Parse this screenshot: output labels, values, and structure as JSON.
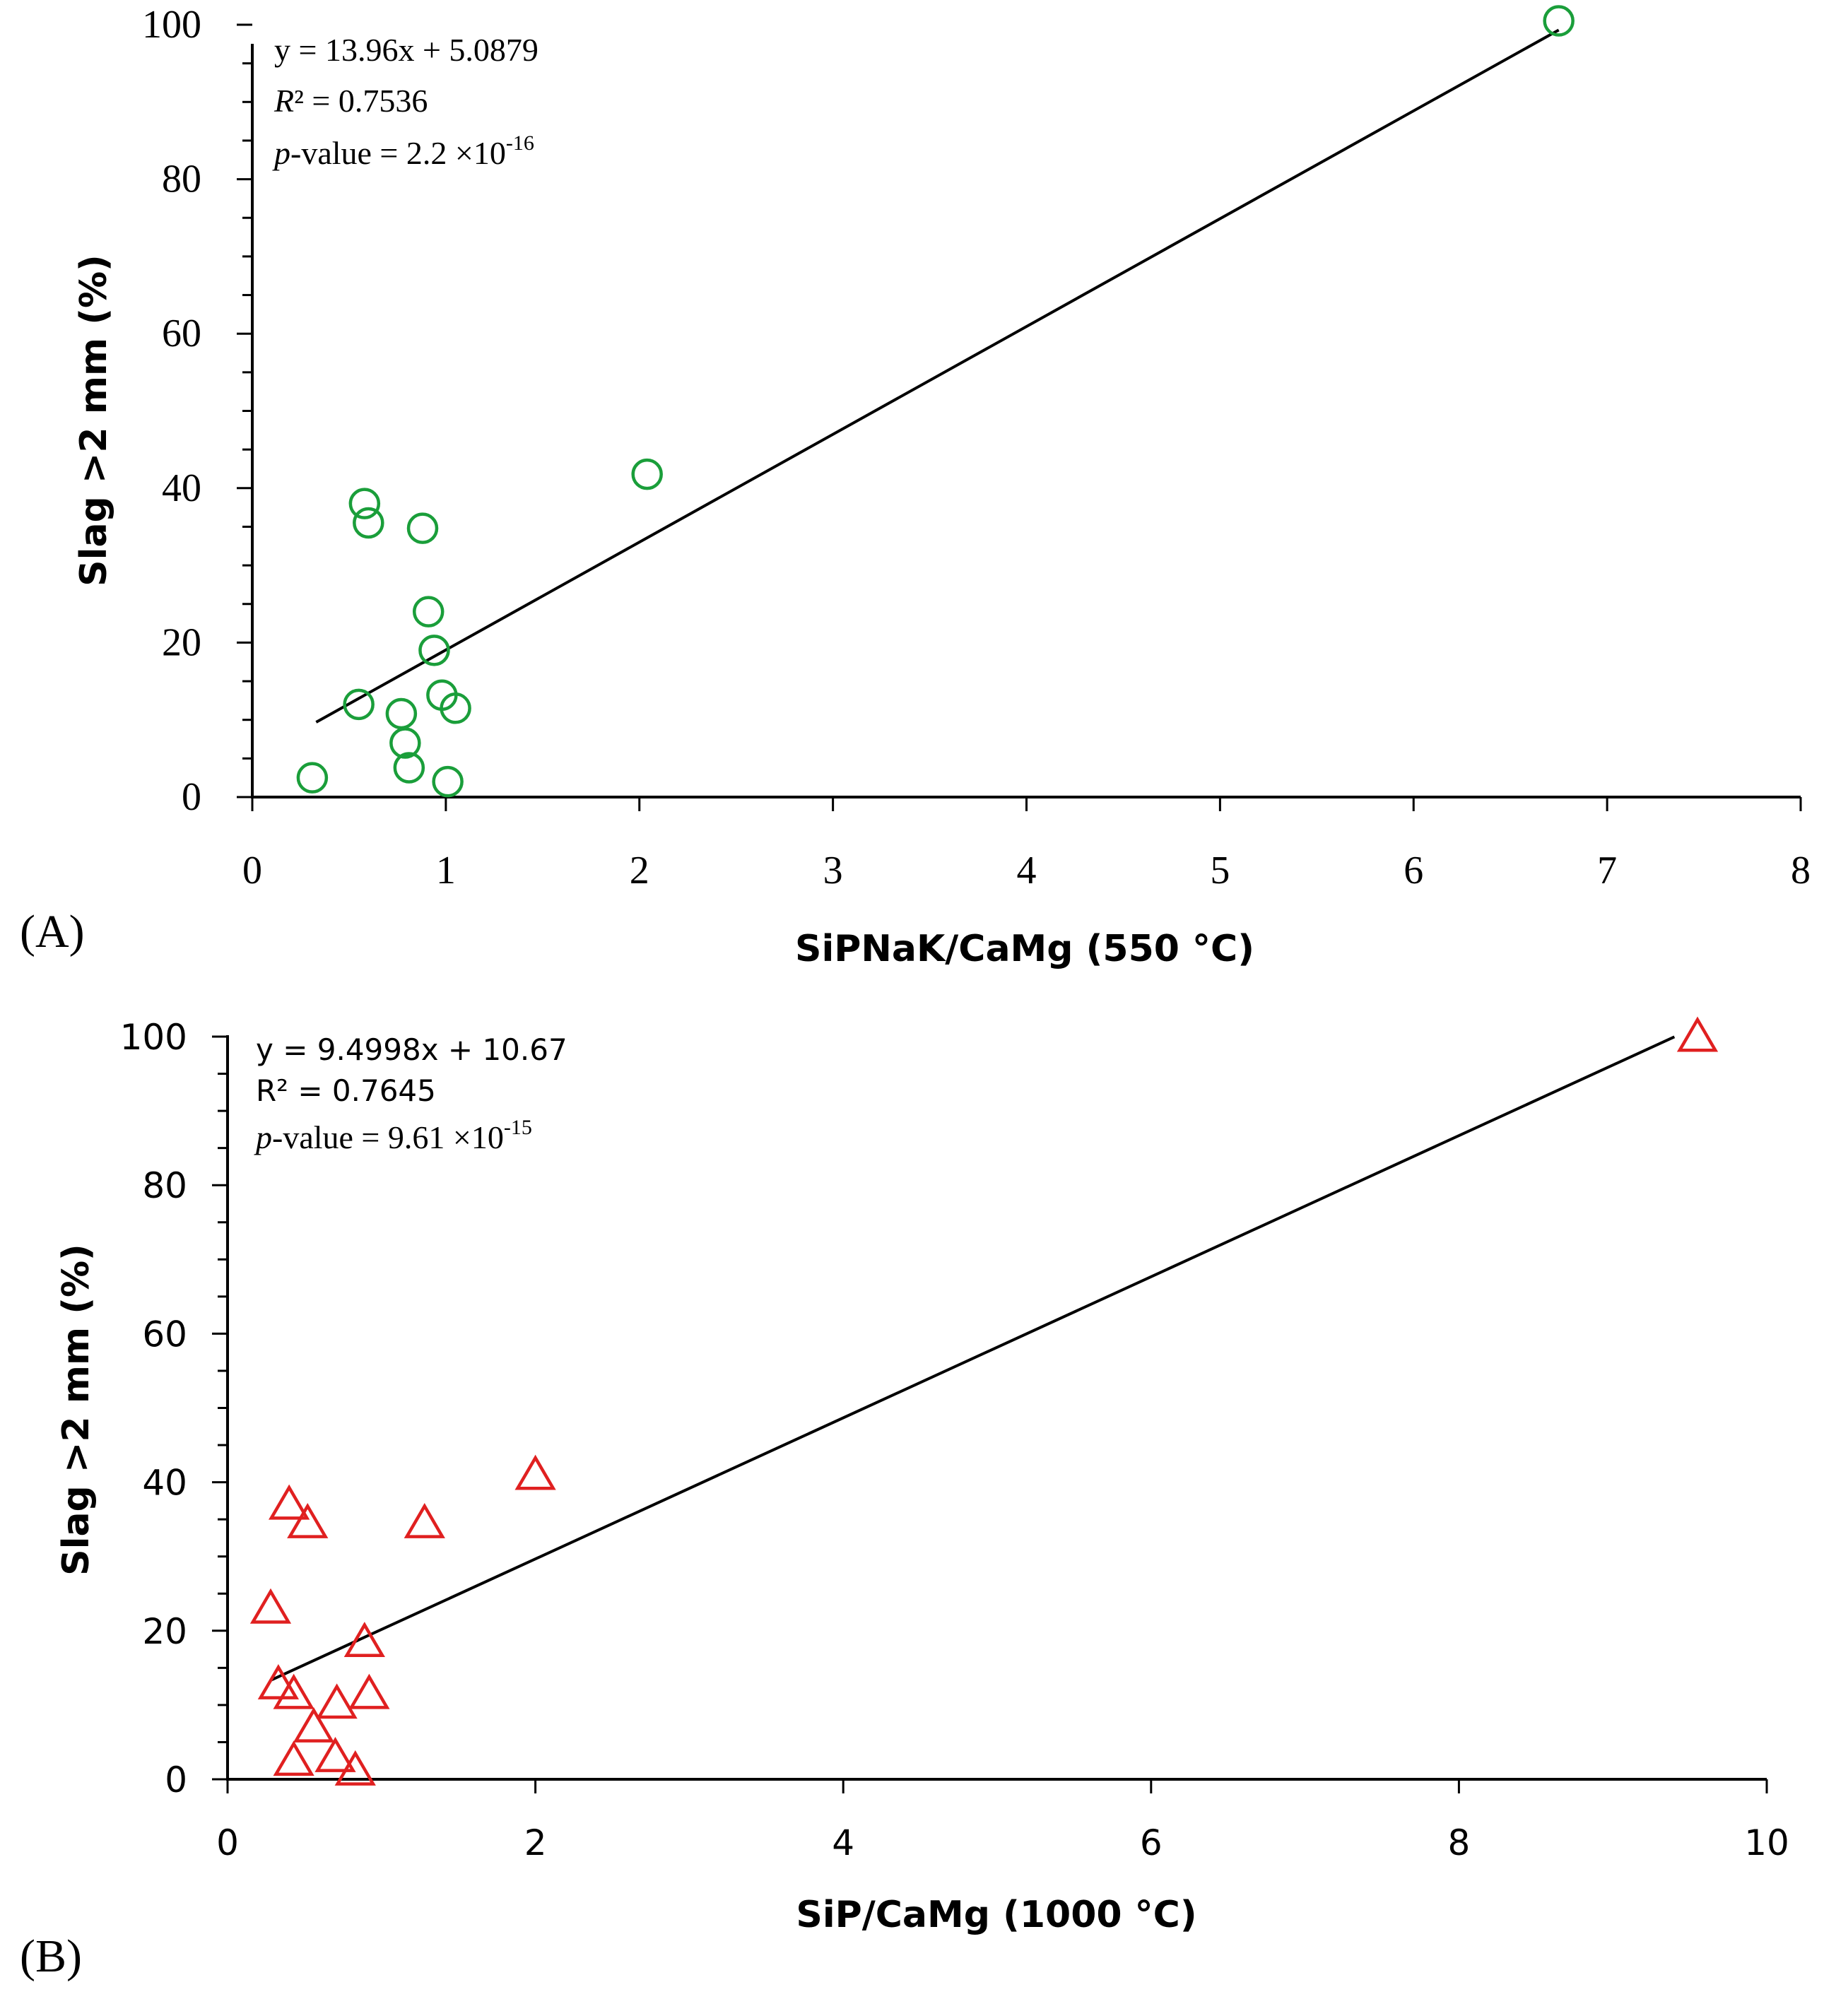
{
  "panels": [
    {
      "panel_label": "(A)",
      "annotation": {
        "equation": "y = 13.96x + 5.0879",
        "r2_symbol": "R",
        "r2_rest": "² = 0.7536",
        "pvalue_symbol": "p",
        "pvalue_rest": "-value = 2.2 ×10",
        "pvalue_exponent": "-16"
      },
      "marker": "circle",
      "color": "#1a9e3a",
      "chart_data": {
        "type": "scatter",
        "title": "",
        "xlabel": "SiPNaK/CaMg (550 °C)",
        "ylabel": "Slag >2 mm (%)",
        "xlim": [
          0,
          8
        ],
        "ylim": [
          0,
          100
        ],
        "xticks": [
          0,
          1,
          2,
          3,
          4,
          5,
          6,
          7,
          8
        ],
        "yticks": [
          0,
          20,
          40,
          60,
          80,
          100
        ],
        "y_minor_step": 5,
        "points": [
          {
            "x": 0.31,
            "y": 2.5
          },
          {
            "x": 0.55,
            "y": 12.0
          },
          {
            "x": 0.58,
            "y": 38.0
          },
          {
            "x": 0.6,
            "y": 35.5
          },
          {
            "x": 0.77,
            "y": 10.8
          },
          {
            "x": 0.79,
            "y": 7.0
          },
          {
            "x": 0.81,
            "y": 3.8
          },
          {
            "x": 0.88,
            "y": 34.8
          },
          {
            "x": 0.91,
            "y": 24.0
          },
          {
            "x": 0.94,
            "y": 19.0
          },
          {
            "x": 0.98,
            "y": 13.2
          },
          {
            "x": 1.01,
            "y": 2.0
          },
          {
            "x": 1.05,
            "y": 11.5
          },
          {
            "x": 2.04,
            "y": 41.8
          },
          {
            "x": 6.75,
            "y": 100.5
          }
        ],
        "fit": {
          "slope": 13.96,
          "intercept": 5.0879,
          "x_range": [
            0.33,
            6.75
          ]
        }
      }
    },
    {
      "panel_label": "(B)",
      "annotation": {
        "equation": "y = 9.4998x + 10.67",
        "r2_text": "R² = 0.7645",
        "pvalue_symbol": "p",
        "pvalue_rest": "-value = 9.61 ×10",
        "pvalue_exponent": "-15"
      },
      "marker": "triangle",
      "color": "#e02020",
      "chart_data": {
        "type": "scatter",
        "title": "",
        "xlabel": "SiP/CaMg (1000 °C)",
        "ylabel": "Slag >2 mm (%)",
        "xlim": [
          0,
          10
        ],
        "ylim": [
          0,
          100
        ],
        "xticks": [
          0,
          2,
          4,
          6,
          8,
          10
        ],
        "yticks": [
          0,
          20,
          40,
          60,
          80,
          100
        ],
        "y_minor_step": 5,
        "points": [
          {
            "x": 0.28,
            "y": 23.0
          },
          {
            "x": 0.33,
            "y": 12.8
          },
          {
            "x": 0.4,
            "y": 37.0
          },
          {
            "x": 0.43,
            "y": 11.5
          },
          {
            "x": 0.43,
            "y": 2.5
          },
          {
            "x": 0.52,
            "y": 34.5
          },
          {
            "x": 0.56,
            "y": 7.0
          },
          {
            "x": 0.7,
            "y": 3.0
          },
          {
            "x": 0.71,
            "y": 10.2
          },
          {
            "x": 0.83,
            "y": 1.2
          },
          {
            "x": 0.89,
            "y": 18.5
          },
          {
            "x": 0.92,
            "y": 11.5
          },
          {
            "x": 1.28,
            "y": 34.5
          },
          {
            "x": 2.0,
            "y": 41.0
          },
          {
            "x": 9.55,
            "y": 100.0
          }
        ],
        "fit": {
          "slope": 9.4998,
          "intercept": 10.67,
          "x_range": [
            0.28,
            9.4
          ]
        }
      }
    }
  ]
}
